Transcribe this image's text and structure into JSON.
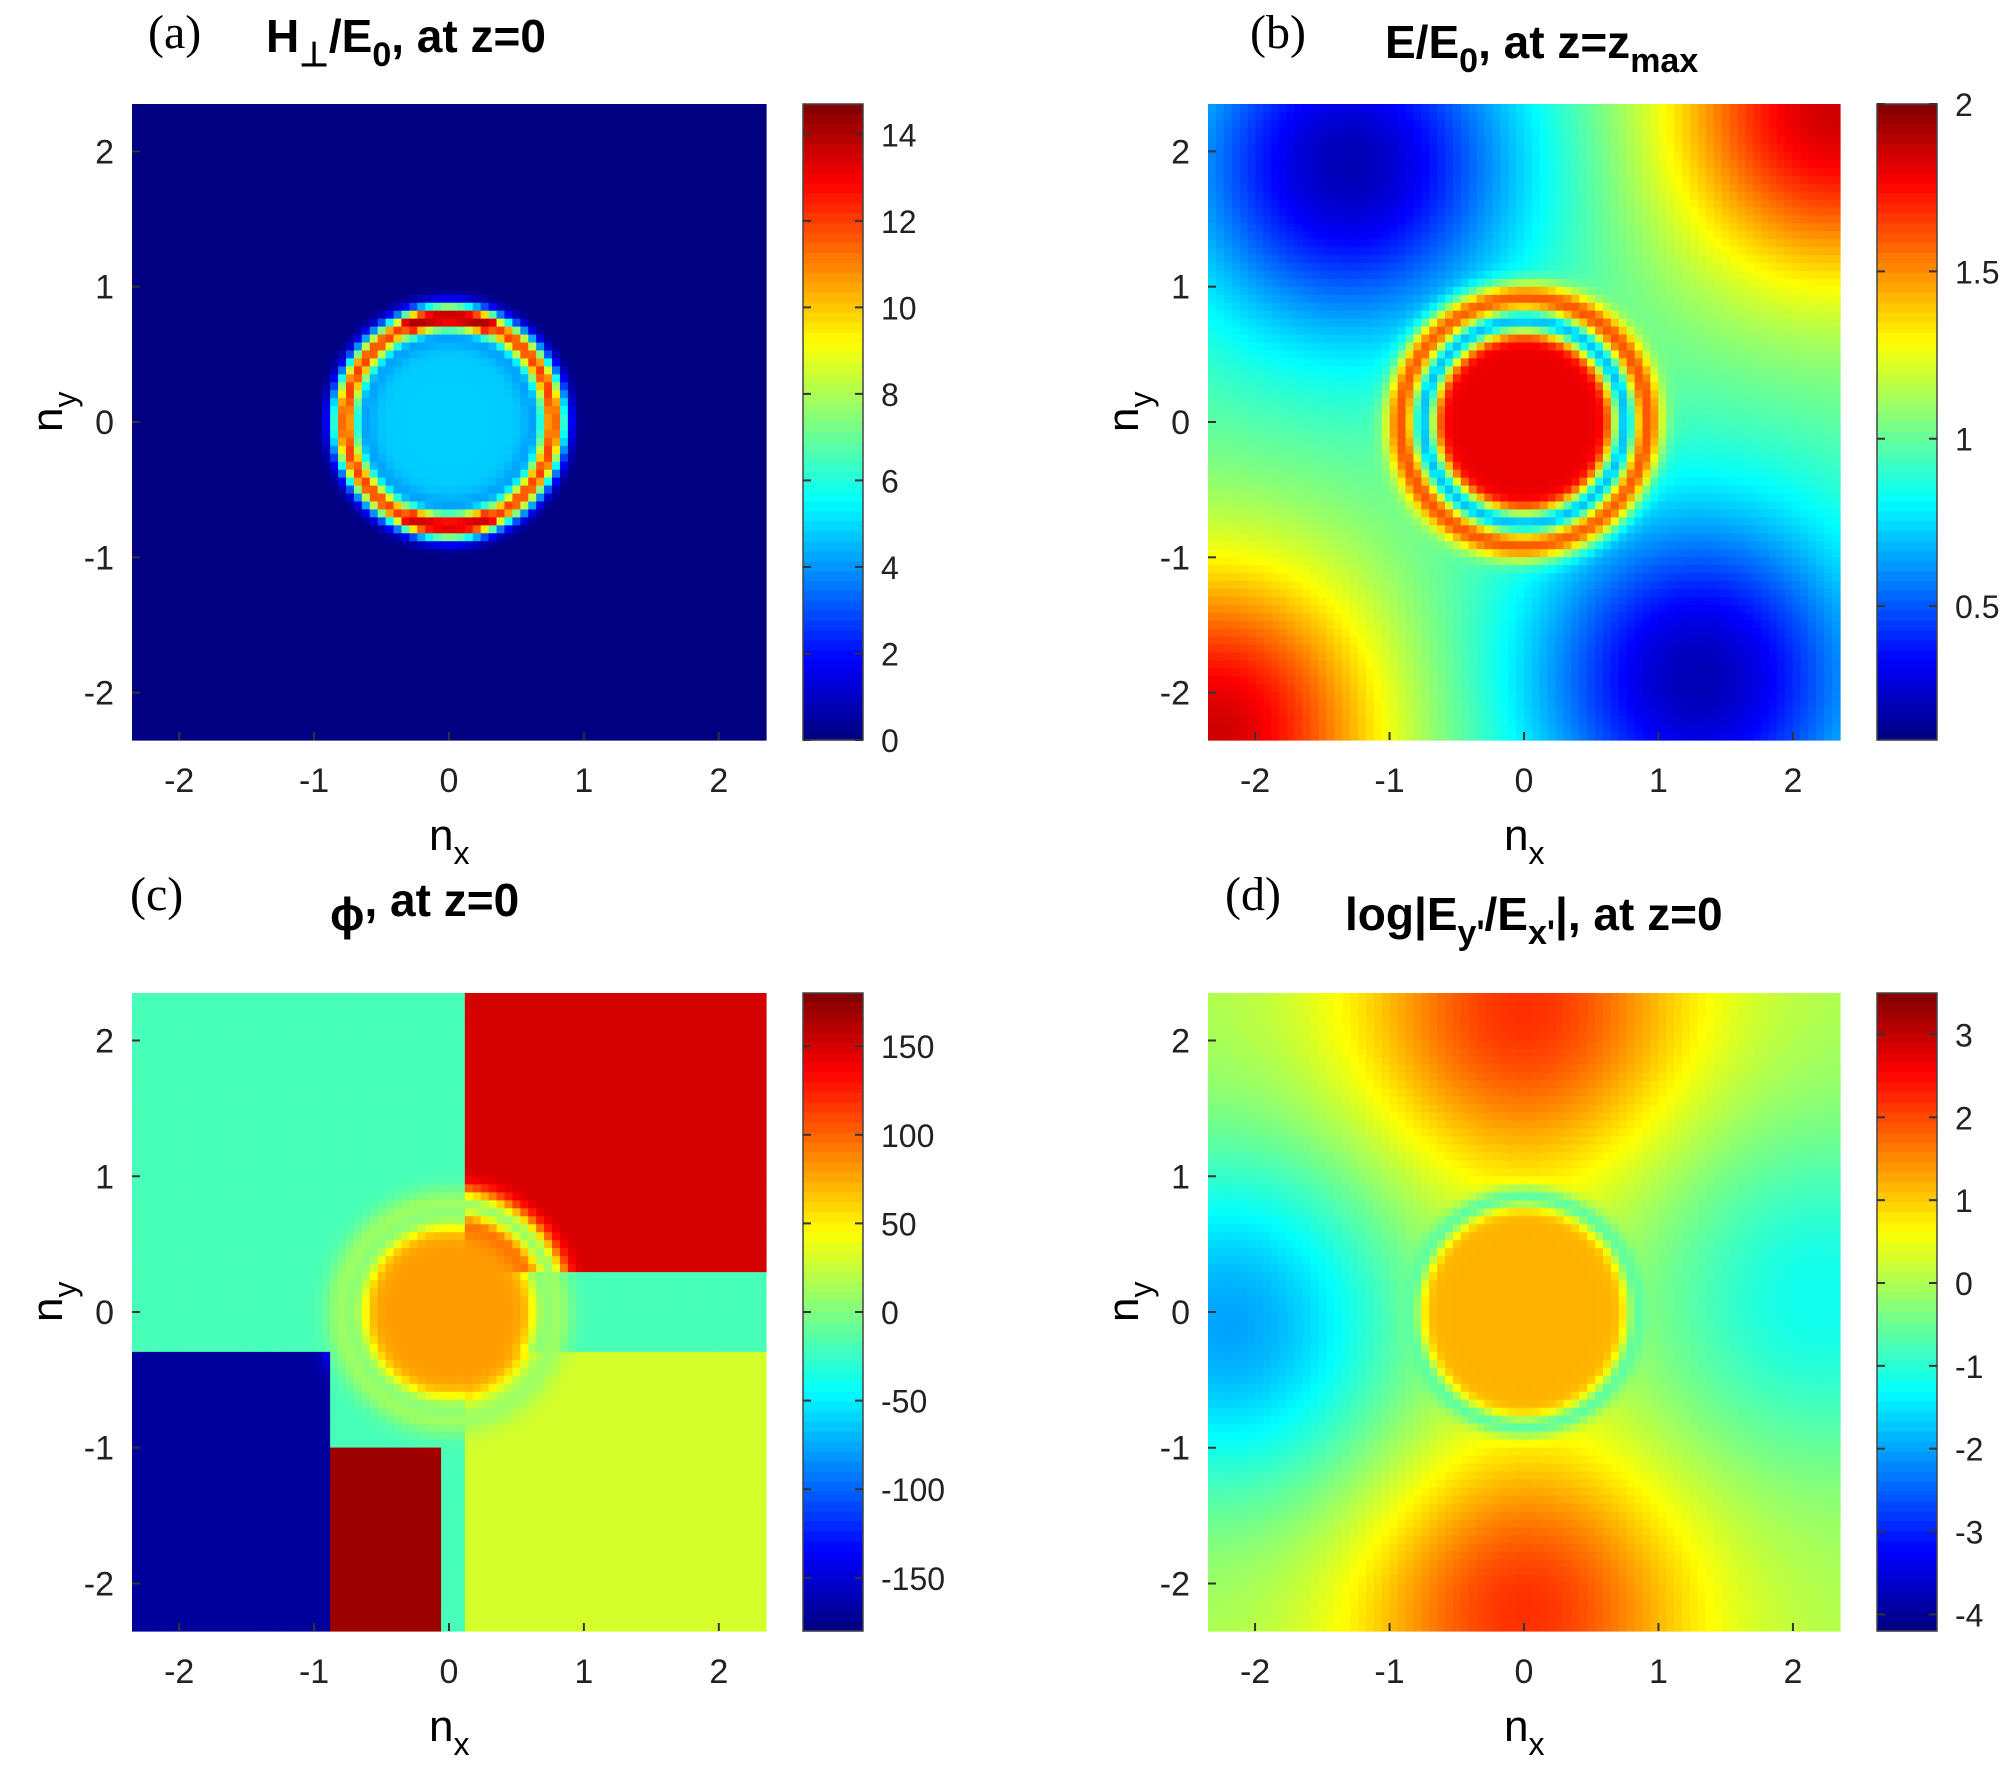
{
  "chart_data": [
    {
      "type": "heatmap",
      "panel_letter": "(a)",
      "title": {
        "pre": "H",
        "sub1": "⊥",
        "mid": "/E",
        "sub2": "0",
        "post": ", at z=0"
      },
      "xlabel": {
        "base": "n",
        "sub": "x"
      },
      "ylabel": {
        "base": "n",
        "sub": "y"
      },
      "xlim": [
        -2.35,
        2.35
      ],
      "ylim": [
        -2.35,
        2.35
      ],
      "xticks": [
        "-2",
        "-1",
        "0",
        "1",
        "2"
      ],
      "yticks": [
        "2",
        "1",
        "0",
        "-1",
        "-2"
      ],
      "colorbar": {
        "min": 0,
        "max": 14.7,
        "ticks": [
          "14",
          "12",
          "10",
          "8",
          "6",
          "4",
          "2",
          "0"
        ],
        "colormap": "jet"
      },
      "grid": false,
      "background_value": 0,
      "features": [
        {
          "kind": "disk",
          "cx": 0,
          "cy": 0,
          "r": 0.65,
          "value": 4.8
        },
        {
          "kind": "ring",
          "cx": 0,
          "cy": 0,
          "r": 0.77,
          "width": 0.1,
          "value": 12
        },
        {
          "kind": "arc",
          "cx": 0,
          "cy": 0,
          "r": 0.77,
          "from_deg": 65,
          "to_deg": 115,
          "value": 14
        },
        {
          "kind": "arc",
          "cx": 0,
          "cy": 0,
          "r": 0.77,
          "from_deg": 245,
          "to_deg": 295,
          "value": 13.5
        }
      ]
    },
    {
      "type": "heatmap",
      "panel_letter": "(b)",
      "title": {
        "pre": "E/E",
        "sub1": "0",
        "mid": ", at z=z",
        "sub2": "max",
        "post": ""
      },
      "xlabel": {
        "base": "n",
        "sub": "x"
      },
      "ylabel": {
        "base": "n",
        "sub": "y"
      },
      "xlim": [
        -2.35,
        2.35
      ],
      "ylim": [
        -2.35,
        2.35
      ],
      "xticks": [
        "-2",
        "-1",
        "0",
        "1",
        "2"
      ],
      "yticks": [
        "2",
        "1",
        "0",
        "-1",
        "-2"
      ],
      "colorbar": {
        "min": 0.1,
        "max": 2.0,
        "ticks": [
          "2",
          "1.5",
          "1",
          "0.5"
        ],
        "colormap": "jet"
      },
      "grid": false,
      "background_value": 1.0,
      "features": [
        {
          "kind": "lobe",
          "cx": 2.3,
          "cy": 2.3,
          "value": 1.85
        },
        {
          "kind": "lobe",
          "cx": -2.3,
          "cy": -2.3,
          "value": 1.85
        },
        {
          "kind": "lobe",
          "cx": -1.3,
          "cy": 1.9,
          "value": 0.2
        },
        {
          "kind": "lobe",
          "cx": 1.3,
          "cy": -1.9,
          "value": 0.2
        },
        {
          "kind": "disk",
          "cx": 0,
          "cy": 0,
          "r": 1.0,
          "value": 1.75
        },
        {
          "kind": "disk",
          "cx": 0,
          "cy": 0,
          "r": 0.65,
          "value": 1.8
        },
        {
          "kind": "ring",
          "cx": 0,
          "cy": 0,
          "r": 0.75,
          "width": 0.1,
          "value": 0.7
        }
      ]
    },
    {
      "type": "heatmap",
      "panel_letter": "(c)",
      "title": {
        "pre": "ϕ",
        "sub1": "",
        "mid": ", at z=0",
        "sub2": "",
        "post": ""
      },
      "xlabel": {
        "base": "n",
        "sub": "x"
      },
      "ylabel": {
        "base": "n",
        "sub": "y"
      },
      "xlim": [
        -2.35,
        2.35
      ],
      "ylim": [
        -2.35,
        2.35
      ],
      "xticks": [
        "-2",
        "-1",
        "0",
        "1",
        "2"
      ],
      "yticks": [
        "2",
        "1",
        "0",
        "-1",
        "-2"
      ],
      "colorbar": {
        "min": -180,
        "max": 180,
        "ticks": [
          "150",
          "100",
          "50",
          "0",
          "-50",
          "-100",
          "-150"
        ],
        "colormap": "jet"
      },
      "grid": false,
      "background_value": -20,
      "features": [
        {
          "kind": "quadrant",
          "x_from": 0.1,
          "x_to": 2.35,
          "y_from": 0.3,
          "y_to": 2.35,
          "value": 150
        },
        {
          "kind": "quadrant",
          "x_from": -2.35,
          "x_to": -0.9,
          "y_from": -2.35,
          "y_to": -0.3,
          "value": -170
        },
        {
          "kind": "quadrant",
          "x_from": -0.9,
          "x_to": -0.05,
          "y_from": -2.35,
          "y_to": -1.0,
          "value": 170
        },
        {
          "kind": "quadrant",
          "x_from": 0.1,
          "x_to": 2.35,
          "y_from": -2.35,
          "y_to": -0.3,
          "value": 30
        },
        {
          "kind": "disk",
          "cx": 0,
          "cy": 0,
          "r": 0.65,
          "value": 80
        },
        {
          "kind": "ring",
          "cx": 0,
          "cy": 0,
          "r": 0.8,
          "width": 0.12,
          "value": 10
        }
      ]
    },
    {
      "type": "heatmap",
      "panel_letter": "(d)",
      "title": {
        "pre": "log|E",
        "sub1": "y'",
        "mid": "/E",
        "sub2": "x'",
        "post": "|, at z=0"
      },
      "xlabel": {
        "base": "n",
        "sub": "x"
      },
      "ylabel": {
        "base": "n",
        "sub": "y"
      },
      "xlim": [
        -2.35,
        2.35
      ],
      "ylim": [
        -2.35,
        2.35
      ],
      "xticks": [
        "-2",
        "-1",
        "0",
        "1",
        "2"
      ],
      "yticks": [
        "2",
        "1",
        "0",
        "-1",
        "-2"
      ],
      "colorbar": {
        "min": -4.2,
        "max": 3.5,
        "ticks": [
          "3",
          "2",
          "1",
          "0",
          "-1",
          "-2",
          "-3",
          "-4"
        ],
        "colormap": "jet"
      },
      "grid": false,
      "background_value": 0,
      "features": [
        {
          "kind": "lobe",
          "cx": 0,
          "cy": 2.2,
          "value": 2.2
        },
        {
          "kind": "lobe",
          "cx": 0,
          "cy": -2.2,
          "value": 2.2
        },
        {
          "kind": "lobe",
          "cx": -2.2,
          "cy": -0.1,
          "value": -2.0
        },
        {
          "kind": "lobe",
          "cx": 2.2,
          "cy": 0.1,
          "value": -1.2
        },
        {
          "kind": "disk",
          "cx": 0,
          "cy": 0,
          "r": 0.8,
          "value": 1.2
        },
        {
          "kind": "ring",
          "cx": 0,
          "cy": 0,
          "r": 0.85,
          "width": 0.08,
          "value": -0.6
        }
      ]
    }
  ]
}
